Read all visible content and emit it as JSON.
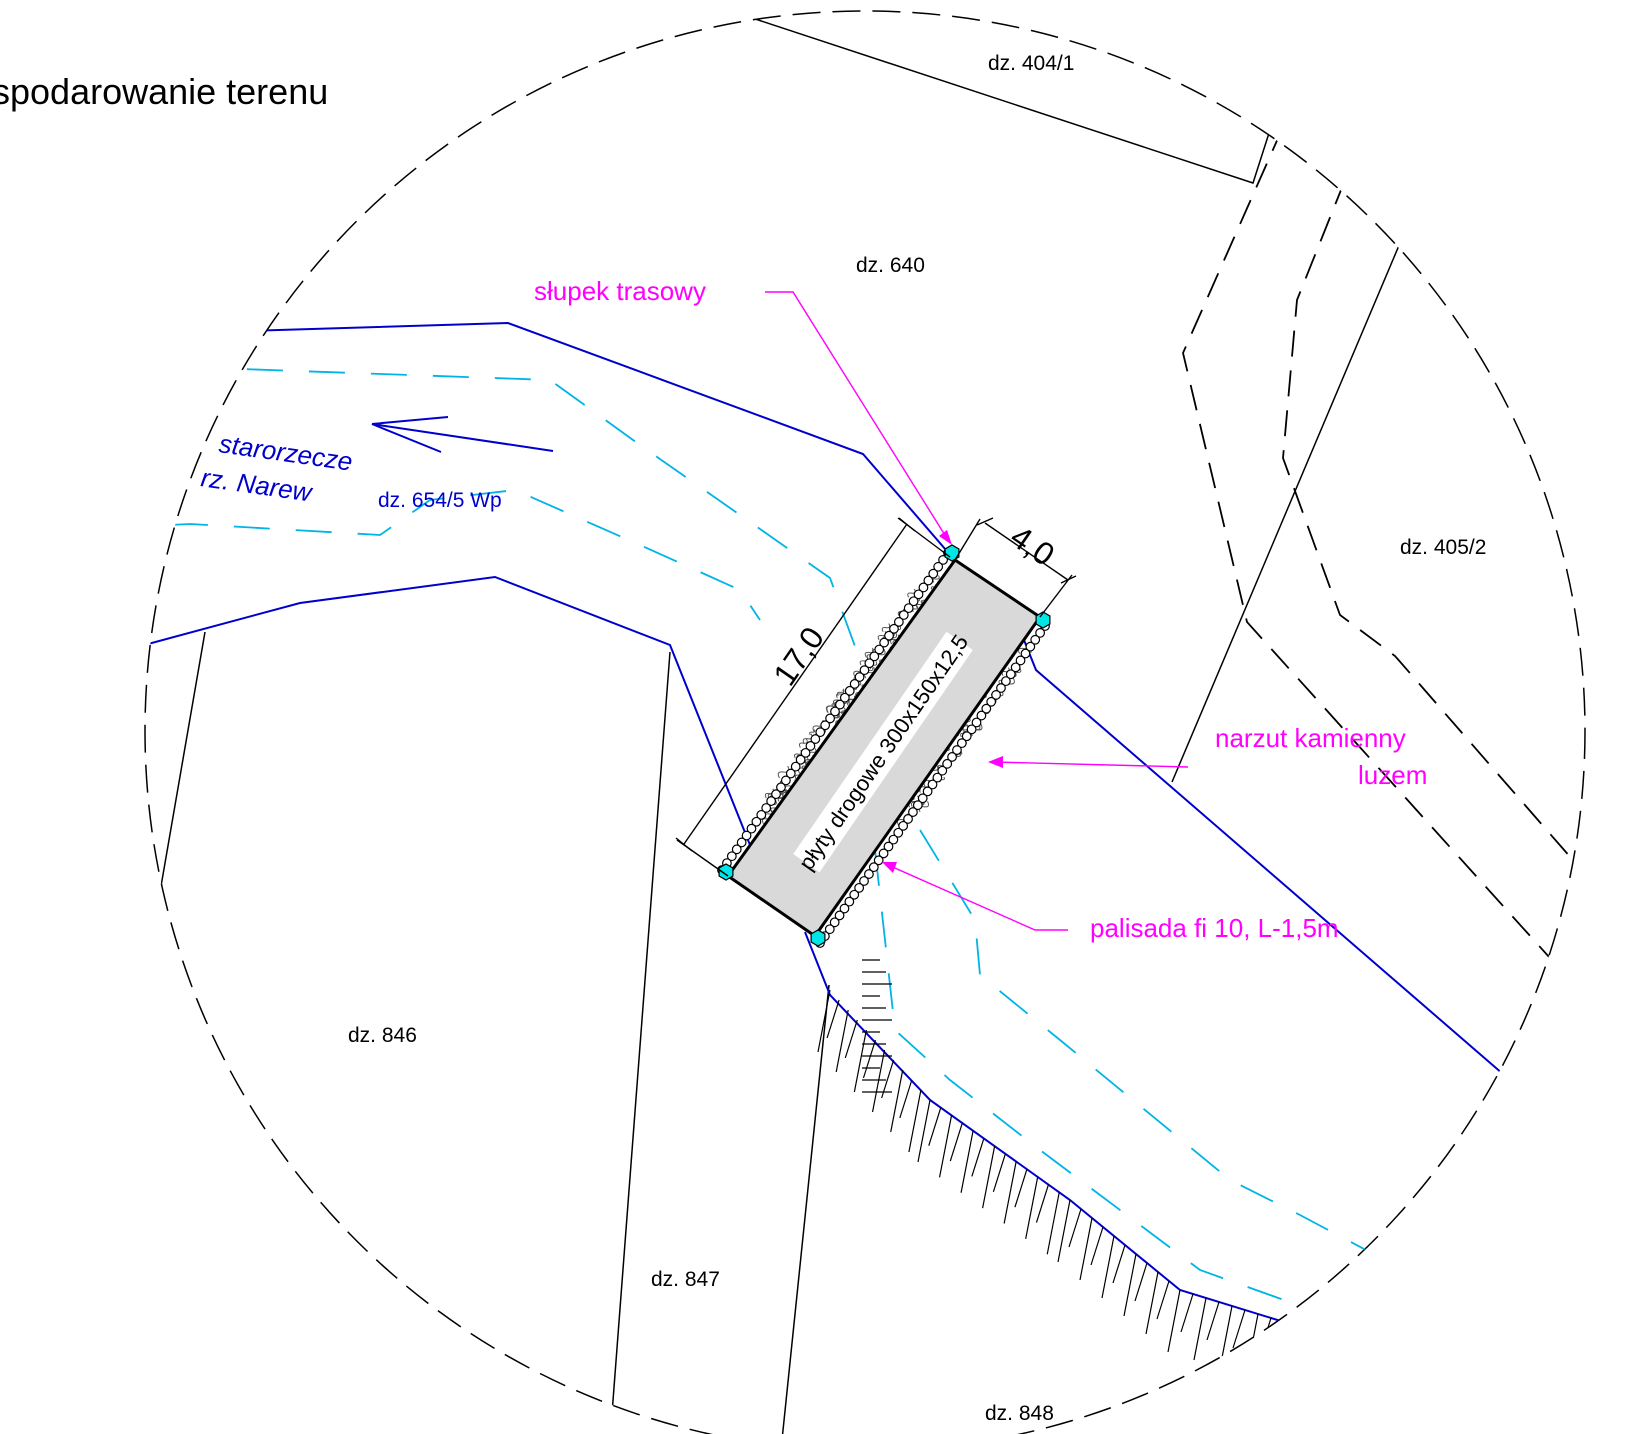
{
  "title": "spodarowanie terenu",
  "colors": {
    "boundary": "#0000cc",
    "water_dashed": "#00b4e6",
    "callout": "#ff00ff",
    "post": "#00e5e5",
    "slab_fill": "#d9d9d9",
    "lines": "#000000"
  },
  "plots": {
    "p404_1": "dz. 404/1",
    "p640": "dz. 640",
    "p405_2": "dz. 405/2",
    "p846": "dz. 846",
    "p847": "dz. 847",
    "p848": "dz. 848"
  },
  "river": {
    "name_line1": "starorzecze",
    "name_line2": "rz. Narew",
    "plot": "dz. 654/5 Wp"
  },
  "callouts": {
    "post": "słupek trasowy",
    "riprap_line1": "narzut kamienny",
    "riprap_line2": "luzem",
    "palisade": "palisada fi 10, L-1,5m"
  },
  "dimensions": {
    "length": "17,0",
    "width": "4,0"
  },
  "slab": {
    "label": "płyty drogowe 300x150x12,5"
  },
  "icons": {
    "post_marker": "hexagon-icon",
    "flow_direction": "arrow-icon"
  }
}
